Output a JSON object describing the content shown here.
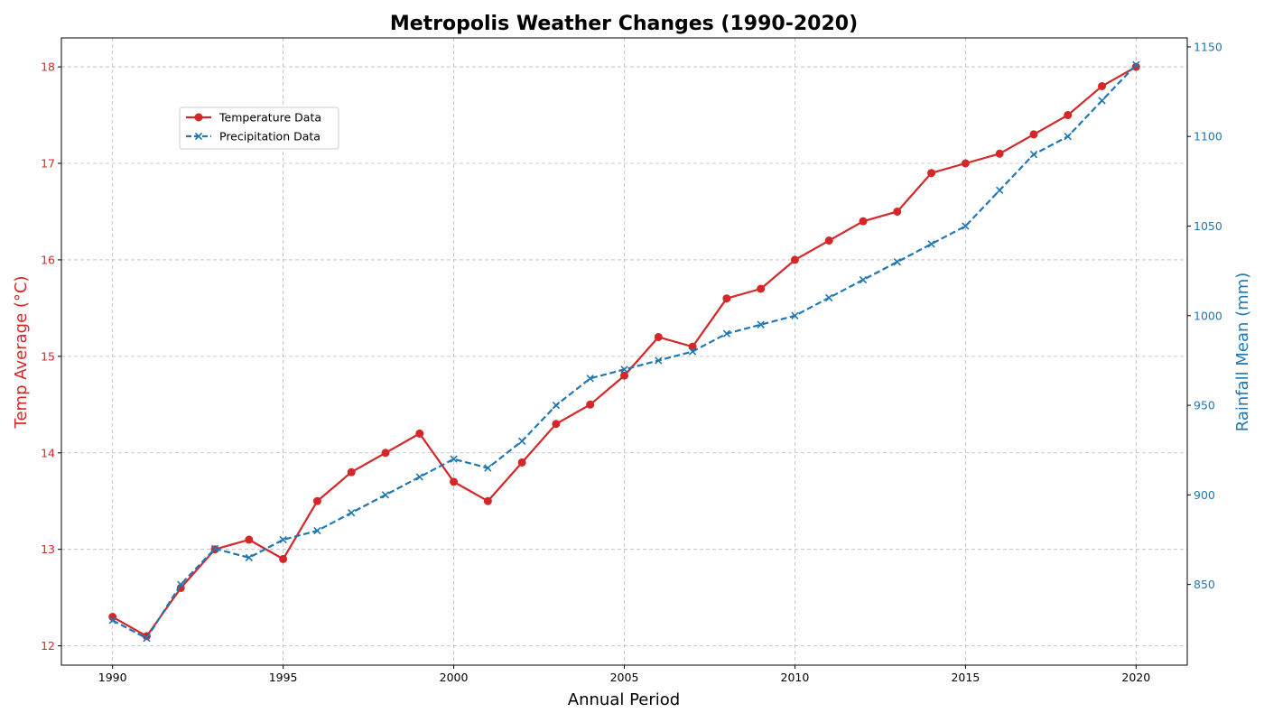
{
  "chart_data": {
    "type": "line",
    "title": "Metropolis Weather Changes (1990-2020)",
    "xlabel": "Annual Period",
    "ylabel_left": "Temp Average (°C)",
    "ylabel_right": "Rainfall Mean (mm)",
    "x": [
      1990,
      1991,
      1992,
      1993,
      1994,
      1995,
      1996,
      1997,
      1998,
      1999,
      2000,
      2001,
      2002,
      2003,
      2004,
      2005,
      2006,
      2007,
      2008,
      2009,
      2010,
      2011,
      2012,
      2013,
      2014,
      2015,
      2016,
      2017,
      2018,
      2019,
      2020
    ],
    "xlim": [
      1988.5,
      2021.5
    ],
    "x_ticks": [
      1990,
      1995,
      2000,
      2005,
      2010,
      2015,
      2020
    ],
    "ylim_left": [
      11.8,
      18.3
    ],
    "y_ticks_left": [
      12,
      13,
      14,
      15,
      16,
      17,
      18
    ],
    "ylim_right": [
      805,
      1155
    ],
    "y_ticks_right": [
      850,
      900,
      950,
      1000,
      1050,
      1100,
      1150
    ],
    "grid": true,
    "legend_position": "upper-left",
    "series": [
      {
        "name": "Temperature Data",
        "axis": "left",
        "color": "#d62728",
        "marker": "circle",
        "linestyle": "solid",
        "values": [
          12.3,
          12.1,
          12.6,
          13.0,
          13.1,
          12.9,
          13.5,
          13.8,
          14.0,
          14.2,
          13.7,
          13.5,
          13.9,
          14.3,
          14.5,
          14.8,
          15.2,
          15.1,
          15.6,
          15.7,
          16.0,
          16.2,
          16.4,
          16.5,
          16.9,
          17.0,
          17.1,
          17.3,
          17.5,
          17.8,
          18.0
        ]
      },
      {
        "name": "Precipitation Data",
        "axis": "right",
        "color": "#1f77b4",
        "marker": "x",
        "linestyle": "dashed",
        "values": [
          830,
          820,
          850,
          870,
          865,
          875,
          880,
          890,
          900,
          910,
          920,
          915,
          930,
          950,
          965,
          970,
          975,
          980,
          990,
          995,
          1000,
          1010,
          1020,
          1030,
          1040,
          1050,
          1070,
          1090,
          1100,
          1120,
          1140
        ]
      }
    ]
  }
}
